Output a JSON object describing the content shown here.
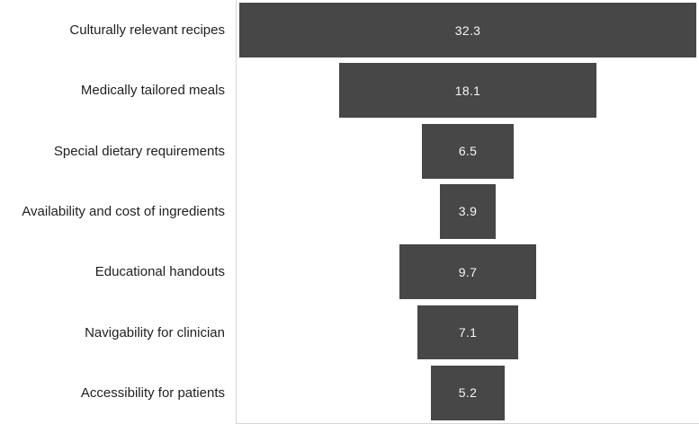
{
  "chart_data": {
    "type": "bar",
    "subtype": "funnel",
    "orientation": "horizontal-centered",
    "title": "",
    "xlabel": "",
    "ylabel": "",
    "categories": [
      "Culturally relevant recipes",
      "Medically tailored meals",
      "Special dietary requirements",
      "Availability and cost of ingredients",
      "Educational handouts",
      "Navigability for clinician",
      "Accessibility for patients"
    ],
    "values": [
      32.3,
      18.1,
      6.5,
      3.9,
      9.7,
      7.1,
      5.2
    ],
    "value_labels_inside_bars": true,
    "axis_max": 32.3,
    "grid": false,
    "legend": false,
    "colors": {
      "bar_fill": "#474747",
      "value_text": "#f5f5f5",
      "category_text": "#1f1f1f",
      "axis_line": "#d6d6d6",
      "background": "#ffffff"
    }
  }
}
